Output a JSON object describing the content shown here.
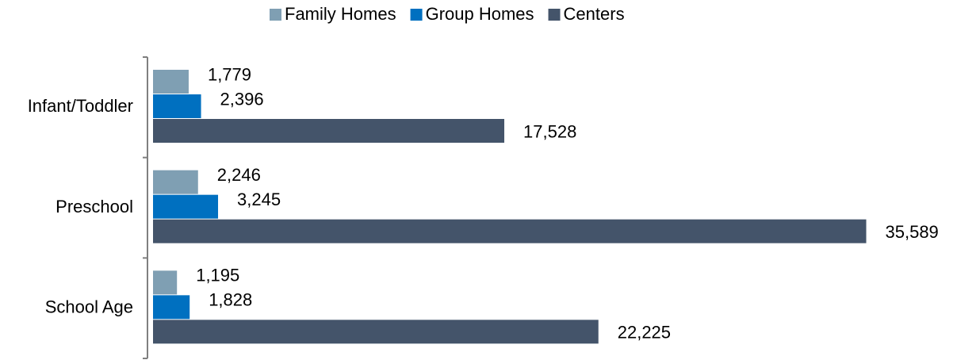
{
  "chart_data": {
    "type": "bar",
    "orientation": "horizontal",
    "categories": [
      "Infant/Toddler",
      "Preschool",
      "School Age"
    ],
    "series": [
      {
        "name": "Family Homes",
        "color": "#7f9fb3",
        "values": [
          1779,
          2246,
          1195
        ],
        "value_labels": [
          "1,779",
          "2,246",
          "1,195"
        ]
      },
      {
        "name": "Group Homes",
        "color": "#0070c0",
        "values": [
          2396,
          3245,
          1828
        ],
        "value_labels": [
          "2,396",
          "3,245",
          "1,828"
        ]
      },
      {
        "name": "Centers",
        "color": "#44546a",
        "values": [
          17528,
          35589,
          22225
        ],
        "value_labels": [
          "17,528",
          "35,589",
          "22,225"
        ]
      }
    ],
    "xlim": [
      0,
      40000
    ],
    "legend": "top"
  }
}
